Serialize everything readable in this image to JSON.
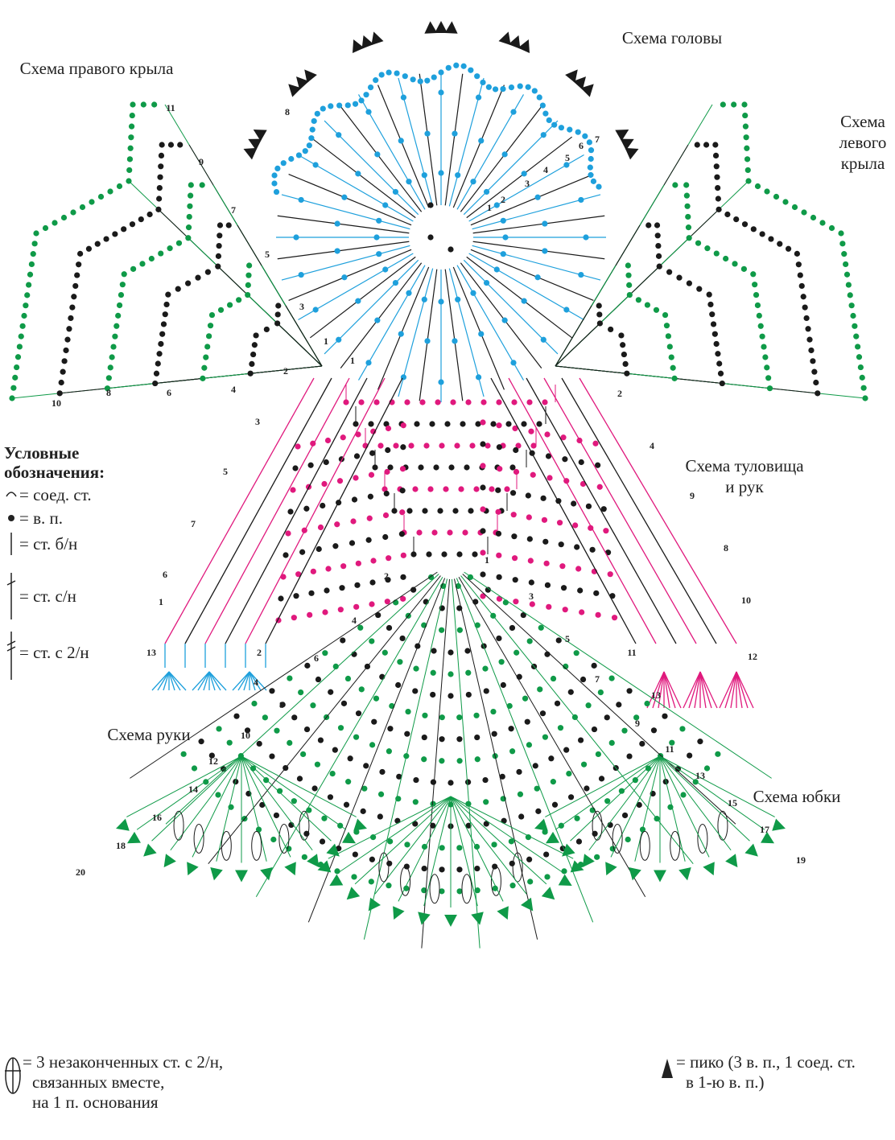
{
  "labels": {
    "head": "Схема головы",
    "right_wing": "Схема правого крыла",
    "left_wing": [
      "Схема",
      "левого",
      "крыла"
    ],
    "body": [
      "Схема туловища",
      "и рук"
    ],
    "arm": "Схема руки",
    "skirt": "Схема юбки"
  },
  "legend": {
    "title": [
      "Условные",
      "обозначения:"
    ],
    "items": [
      "= соед. ст.",
      "= в. п.",
      "= ст. б/н",
      "= ст. с/н",
      "= ст. с 2/н"
    ]
  },
  "notes": {
    "cluster": [
      "= 3 незаконченных ст. с 2/н,",
      "связанных вместе,",
      "на 1 п. основания"
    ],
    "picot": [
      "= пико (3 в. п., 1 соед. ст.",
      "в 1-ю в. п.)"
    ]
  },
  "round_numbers": {
    "head": [
      "1",
      "2",
      "3",
      "4",
      "5",
      "6",
      "7",
      "8"
    ],
    "right_wing": [
      "1",
      "2",
      "3",
      "4",
      "5",
      "6",
      "7",
      "8",
      "9",
      "10",
      "11"
    ],
    "body": [
      "1",
      "2",
      "4",
      "9",
      "8",
      "10",
      "11",
      "12",
      "13",
      "3",
      "5",
      "7",
      "6",
      "1",
      "13",
      "2",
      "4"
    ],
    "skirt": [
      "1",
      "2",
      "3",
      "4",
      "5",
      "6",
      "7",
      "8",
      "9",
      "10",
      "11",
      "12",
      "13",
      "14",
      "15",
      "16",
      "17",
      "18",
      "19",
      "20"
    ]
  }
}
